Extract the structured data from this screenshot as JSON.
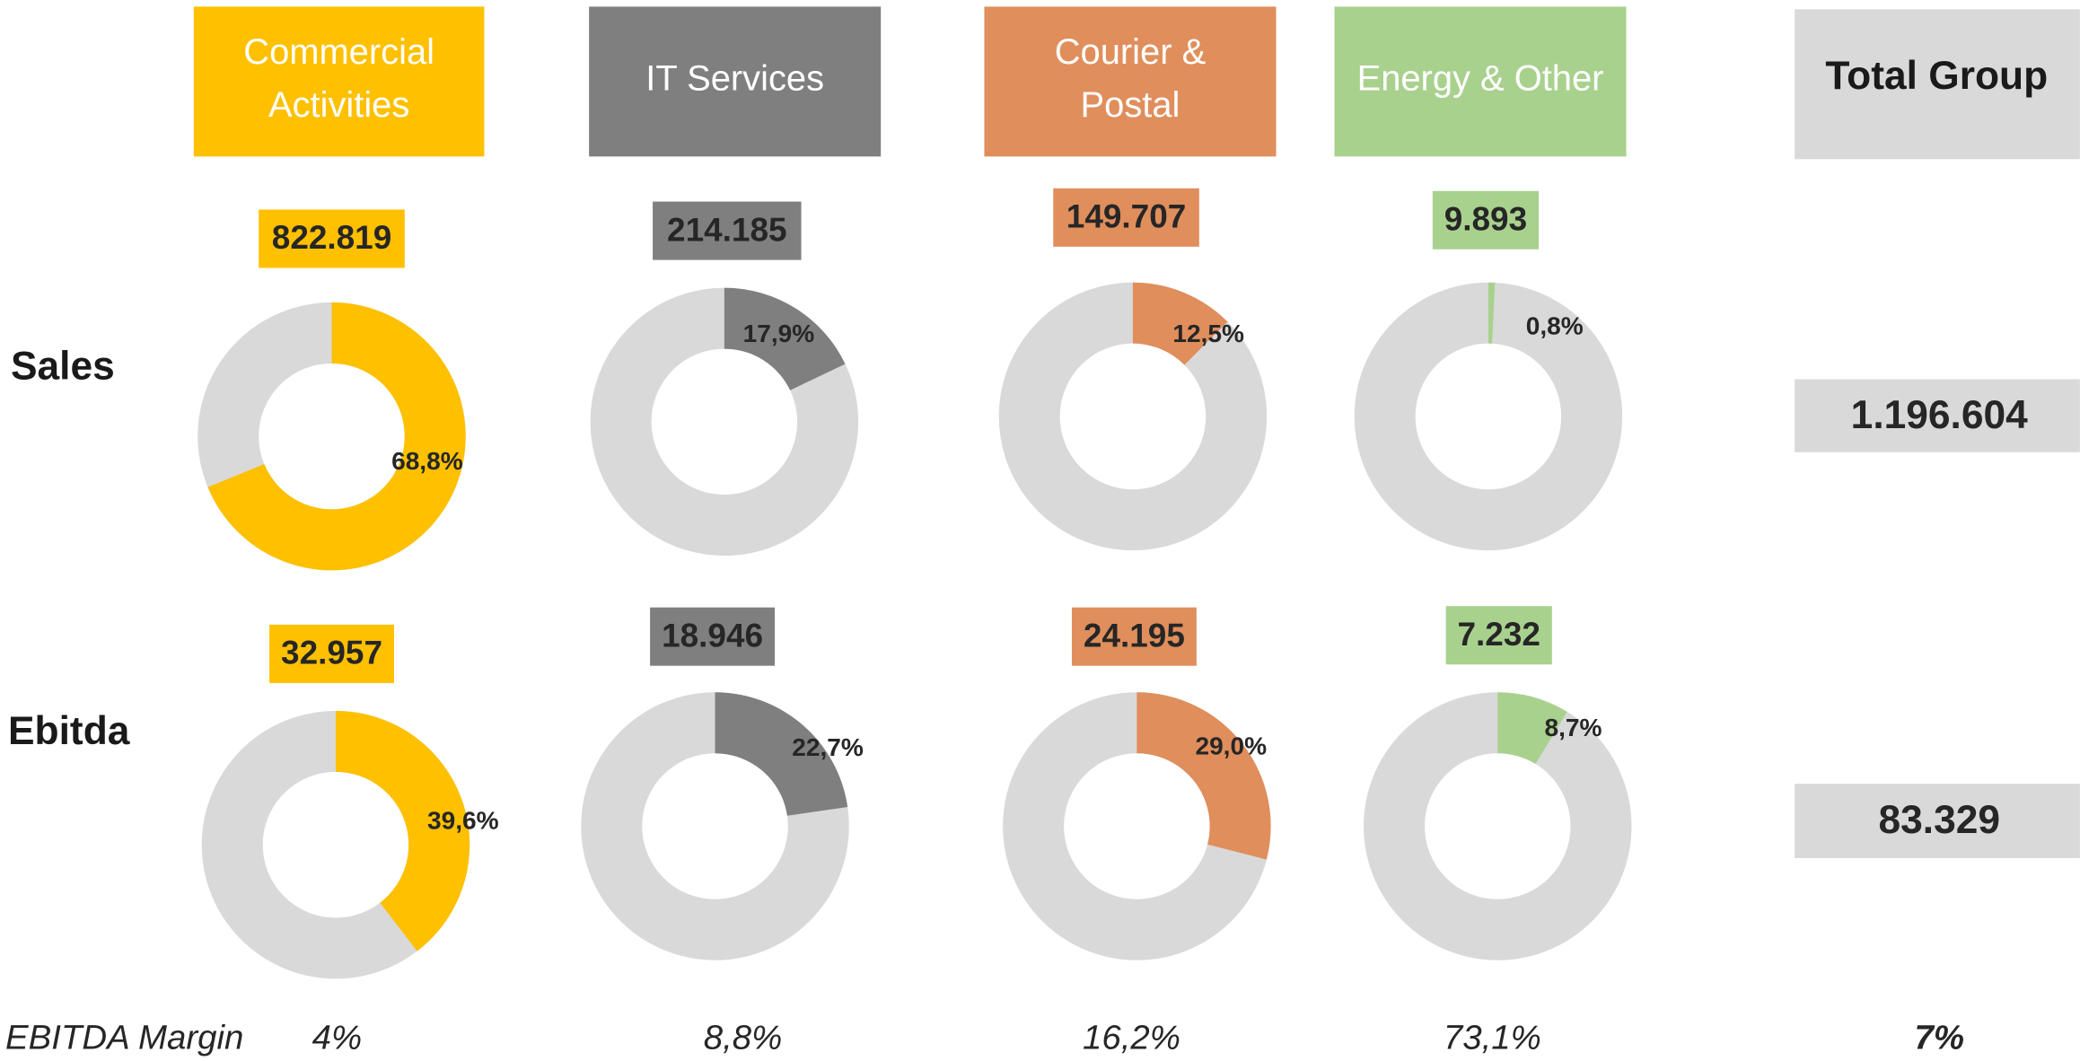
{
  "row_labels": {
    "sales": "Sales",
    "ebitda": "Ebitda",
    "margin": "EBITDA Margin"
  },
  "divisions": [
    {
      "name": [
        "Commercial",
        "Activities"
      ],
      "color": "#ffc000",
      "sales": "822.819",
      "sales_share": 68.8,
      "sales_share_label": "68,8%",
      "ebitda": "32.957",
      "ebitda_share": 39.6,
      "ebitda_share_label": "39,6%",
      "margin": "4%"
    },
    {
      "name": [
        "IT Services"
      ],
      "color": "#7f7f7f",
      "sales": "214.185",
      "sales_share": 17.9,
      "sales_share_label": "17,9%",
      "ebitda": "18.946",
      "ebitda_share": 22.7,
      "ebitda_share_label": "22,7%",
      "margin": "8,8%"
    },
    {
      "name": [
        "Courier &",
        "Postal"
      ],
      "color": "#e08e5c",
      "sales": "149.707",
      "sales_share": 12.5,
      "sales_share_label": "12,5%",
      "ebitda": "24.195",
      "ebitda_share": 29.0,
      "ebitda_share_label": "29,0%",
      "margin": "16,2%"
    },
    {
      "name": [
        "Energy & Other"
      ],
      "color": "#a9d18e",
      "sales": "9.893",
      "sales_share": 0.8,
      "sales_share_label": "0,8%",
      "ebitda": "7.232",
      "ebitda_share": 8.7,
      "ebitda_share_label": "8,7%",
      "margin": "73,1%"
    }
  ],
  "total": {
    "name": "Total Group",
    "color": "#d9d9d9",
    "sales": "1.196.604",
    "ebitda": "83.329",
    "margin": "7%"
  }
}
